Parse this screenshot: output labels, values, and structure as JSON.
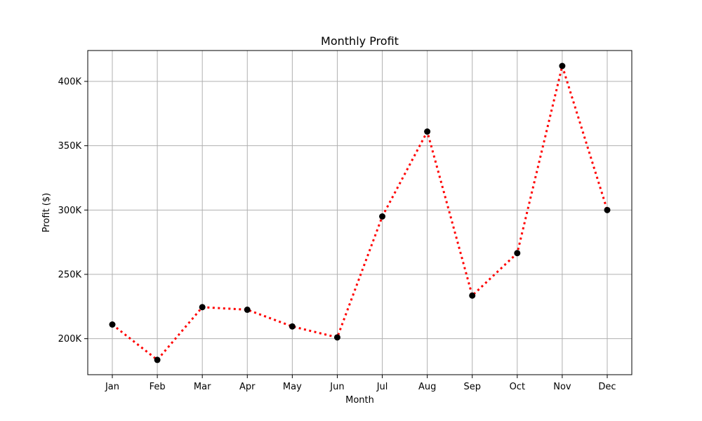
{
  "chart_data": {
    "type": "line",
    "title": "Monthly Profit",
    "xlabel": "Month",
    "ylabel": "Profit ($)",
    "categories": [
      "Jan",
      "Feb",
      "Mar",
      "Apr",
      "May",
      "Jun",
      "Jul",
      "Aug",
      "Sep",
      "Oct",
      "Nov",
      "Dec"
    ],
    "series": [
      {
        "values": [
          211000,
          183500,
          224500,
          222500,
          209500,
          201000,
          295000,
          361000,
          233500,
          266500,
          412000,
          300000
        ],
        "line_color": "#ff0000",
        "line_style": "dotted",
        "marker": "circle",
        "marker_color": "#000000"
      }
    ],
    "yticks": [
      200000,
      250000,
      300000,
      350000,
      400000
    ],
    "ytick_labels": [
      "200K",
      "250K",
      "300K",
      "350K",
      "400K"
    ],
    "ylim": [
      172000,
      424000
    ],
    "grid": true,
    "grid_color": "#b0b0b0",
    "legend": "none"
  }
}
